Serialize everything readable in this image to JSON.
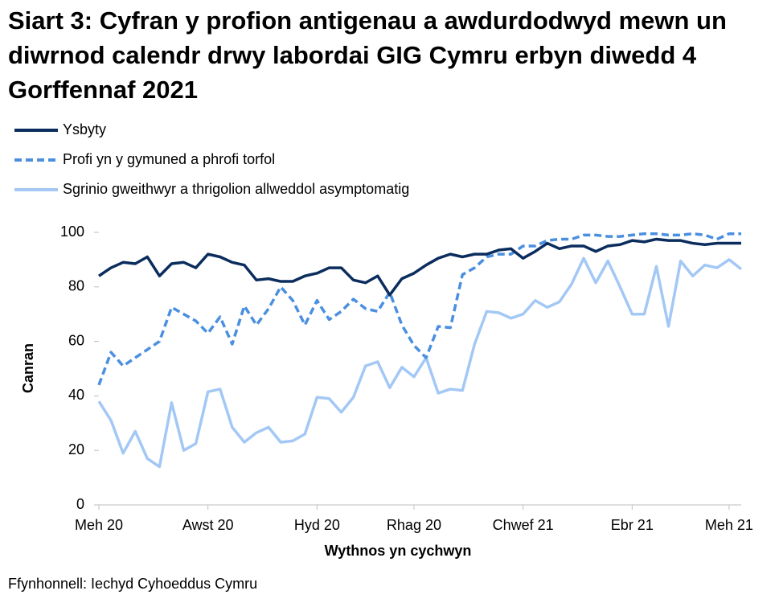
{
  "chart_data": {
    "type": "line",
    "title": "Siart 3: Cyfran y profion antigenau a awdurdodwyd mewn un diwrnod calendr drwy labordai GIG Cymru erbyn diwedd 4 Gorffennaf 2021",
    "x_label": "Wythnos yn cychwyn",
    "y_label": "Canran",
    "source": "Ffynhonnell: Iechyd Cyhoeddus Cymru",
    "categories": [
      "Meh 20",
      null,
      null,
      null,
      null,
      null,
      null,
      null,
      null,
      "Awst 20",
      null,
      null,
      null,
      null,
      null,
      null,
      null,
      null,
      "Hyd 20",
      null,
      null,
      null,
      null,
      null,
      null,
      null,
      "Rhag 20",
      null,
      null,
      null,
      null,
      null,
      null,
      null,
      null,
      "Chwef 21",
      null,
      null,
      null,
      null,
      null,
      null,
      null,
      null,
      "Ebr 21",
      null,
      null,
      null,
      null,
      null,
      null,
      null,
      "Meh 21",
      null
    ],
    "series": [
      {
        "name": "Ysbyty",
        "color": "#0b2d5e",
        "dashed": false,
        "values": [
          84,
          87,
          89,
          88.5,
          91,
          84,
          88.5,
          89,
          87,
          92,
          91,
          89,
          88,
          82.5,
          83,
          82,
          82,
          84,
          85,
          87,
          87,
          82.5,
          81.5,
          84,
          77,
          83,
          85,
          88,
          90.5,
          92,
          91,
          92,
          92,
          93.5,
          94,
          90.5,
          93,
          96,
          94,
          95,
          95,
          93,
          95,
          95.5,
          97,
          96.5,
          97.5,
          97,
          97,
          96,
          95.5,
          96,
          96,
          96
        ]
      },
      {
        "name": "Profi yn y gymuned a phrofi torfol",
        "color": "#4a8fe0",
        "dashed": true,
        "values": [
          44,
          56,
          51,
          54,
          57,
          60,
          72.5,
          70,
          67.5,
          63,
          69,
          59,
          73,
          66,
          72,
          80,
          75,
          66,
          75,
          68,
          71,
          75.5,
          72,
          71,
          78,
          66,
          58.5,
          54,
          65.5,
          65,
          84.5,
          87,
          91,
          92,
          92,
          95,
          95,
          97,
          97.5,
          97.5,
          99,
          99,
          98.5,
          98.5,
          99,
          99.5,
          99.5,
          99,
          99,
          99.5,
          99,
          97.5,
          99.5,
          99.5
        ]
      },
      {
        "name": "Sgrinio gweithwyr a thrigolion allweddol asymptomatig",
        "color": "#a3c8f5",
        "dashed": false,
        "values": [
          38,
          31,
          19,
          27,
          17,
          14,
          37.5,
          20,
          22.5,
          41.5,
          42.5,
          28.5,
          23,
          26.5,
          28.5,
          23,
          23.5,
          26,
          39.5,
          39,
          34,
          39.5,
          51,
          52.5,
          43,
          50.5,
          47,
          54,
          41,
          42.5,
          42,
          59,
          71,
          70.5,
          68.5,
          70,
          75,
          72.5,
          74.5,
          81,
          90.5,
          81.5,
          89.5,
          80,
          70,
          70,
          87.5,
          65.5,
          89.5,
          84,
          88,
          87,
          90,
          86.5
        ]
      }
    ],
    "ylim": [
      0,
      100
    ],
    "yticks": [
      0,
      20,
      40,
      60,
      80,
      100
    ],
    "grid": false
  }
}
